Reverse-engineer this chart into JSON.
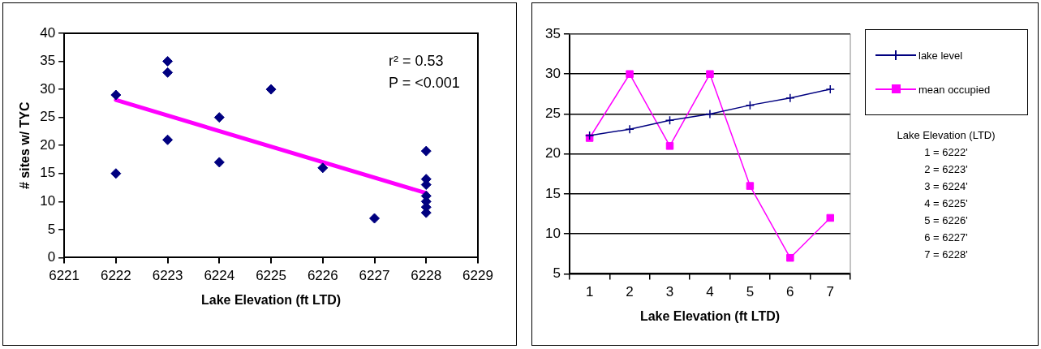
{
  "chart_data": [
    {
      "type": "scatter",
      "xlabel": "Lake Elevation (ft LTD)",
      "ylabel": "# sites w/ TYC",
      "xlim": [
        6221,
        6229
      ],
      "xticks": [
        6221,
        6222,
        6223,
        6224,
        6225,
        6226,
        6227,
        6228,
        6229
      ],
      "ylim": [
        0,
        40
      ],
      "yticks": [
        0,
        5,
        10,
        15,
        20,
        25,
        30,
        35,
        40
      ],
      "grid": false,
      "legend": false,
      "marker": "diamond",
      "series": [
        {
          "color": "#000080",
          "x": [
            6222,
            6222,
            6223,
            6223,
            6223,
            6224,
            6224,
            6225,
            6226,
            6227,
            6228,
            6228,
            6228,
            6228,
            6228,
            6228,
            6228
          ],
          "values": [
            29,
            15,
            35,
            33,
            21,
            25,
            17,
            30,
            16,
            7,
            19,
            14,
            13,
            11,
            10,
            9,
            8
          ]
        },
        {
          "type": "line",
          "color": "#ff00ff",
          "marker": "none",
          "x": [
            6222,
            6228
          ],
          "values": [
            28.1,
            11.5
          ]
        }
      ],
      "annotations": [
        "r² = 0.53",
        "P = <0.001"
      ]
    },
    {
      "type": "line",
      "xlabel": "Lake Elevation (ft LTD)",
      "categories": [
        "1",
        "2",
        "3",
        "4",
        "5",
        "6",
        "7"
      ],
      "ylim": [
        5,
        35
      ],
      "yticks": [
        5,
        10,
        15,
        20,
        25,
        30,
        35
      ],
      "grid": "y",
      "legend": "right",
      "series": [
        {
          "name": "lake level",
          "color": "#000080",
          "marker": "cross",
          "values": [
            22.3,
            23.1,
            24.2,
            25,
            26.1,
            27,
            28.1
          ]
        },
        {
          "name": "mean occupied",
          "color": "#ff00ff",
          "marker": "square",
          "values": [
            22,
            30,
            21,
            30,
            16,
            7,
            12
          ]
        }
      ],
      "annotations": [
        "Lake Elevation (LTD)",
        "1 = 6222'",
        "2 = 6223'",
        "3 = 6224'",
        "4 = 6225'",
        "5 = 6226'",
        "6 = 6227'",
        "7 = 6228'"
      ]
    }
  ]
}
